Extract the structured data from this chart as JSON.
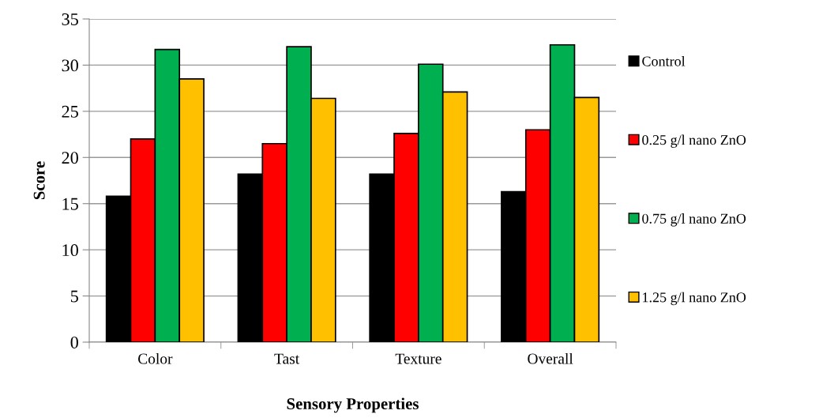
{
  "chart_data": {
    "type": "bar",
    "xlabel": "Sensory Properties",
    "ylabel": "Score",
    "categories": [
      "Color",
      "Tast",
      "Texture",
      "Overall"
    ],
    "series": [
      {
        "name": "Control",
        "color": "#000000",
        "values": [
          15.8,
          18.2,
          18.2,
          16.3
        ]
      },
      {
        "name": "0.25 g/l nano ZnO",
        "color": "#ff0000",
        "values": [
          22.0,
          21.5,
          22.6,
          23.0
        ]
      },
      {
        "name": "0.75 g/l nano ZnO",
        "color": "#00b050",
        "values": [
          31.7,
          32.0,
          30.1,
          32.2
        ]
      },
      {
        "name": "1.25 g/l nano ZnO",
        "color": "#ffc000",
        "values": [
          28.5,
          26.4,
          27.1,
          26.5
        ]
      }
    ],
    "ylim": [
      0,
      35
    ],
    "yticks": [
      0,
      5,
      10,
      15,
      20,
      25,
      30,
      35
    ],
    "grid": "y",
    "legend": "right"
  }
}
